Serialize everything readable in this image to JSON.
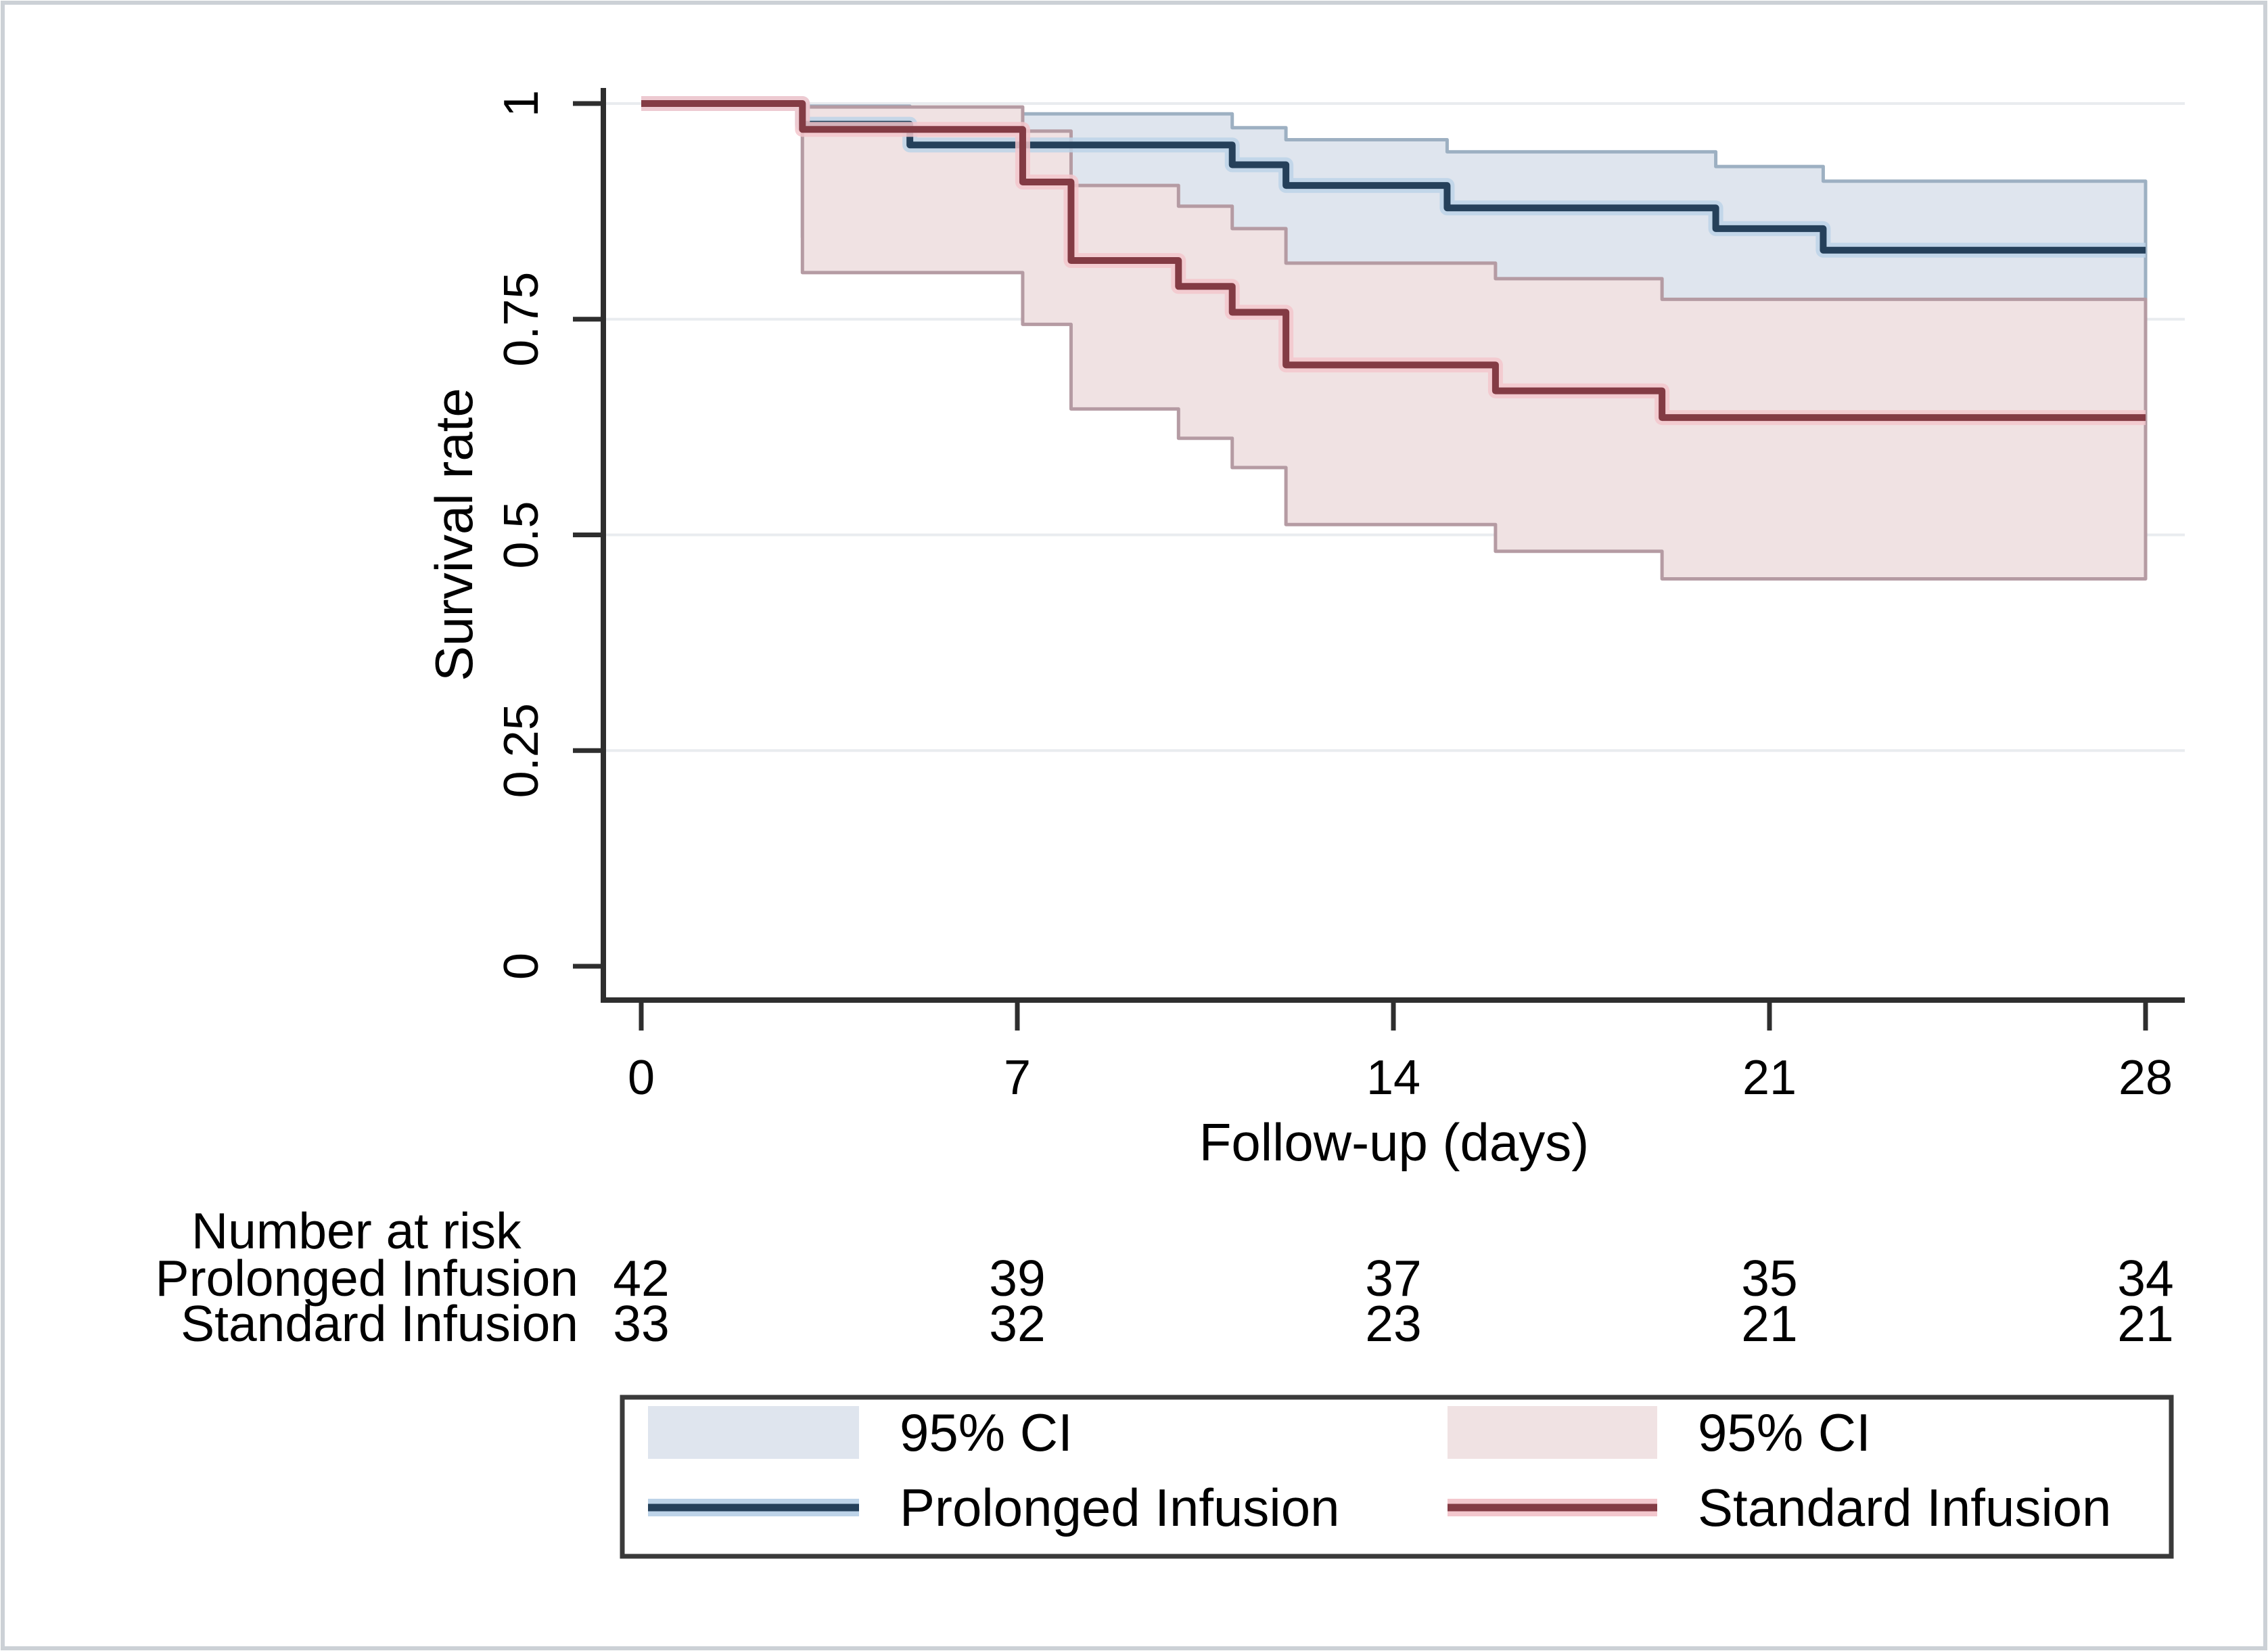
{
  "figure": {
    "kind": "kaplan-meier-survival-plot",
    "background": "#ffffff",
    "border_color": "#ccd1d6"
  },
  "chart_data": {
    "type": "line",
    "subtype": "kaplan_meier_step",
    "xlabel": "Follow-up (days)",
    "ylabel": "Survival rate",
    "xlim": [
      0,
      28
    ],
    "ylim": [
      0,
      1
    ],
    "x_ticks": [
      0,
      7,
      14,
      21,
      28
    ],
    "y_ticks": [
      {
        "value": 0,
        "label": "0"
      },
      {
        "value": 0.25,
        "label": "0.25"
      },
      {
        "value": 0.5,
        "label": "0.5"
      },
      {
        "value": 0.75,
        "label": "0.75"
      },
      {
        "value": 1,
        "label": "1"
      }
    ],
    "grid": "horizontal",
    "grid_color": "#e9ecef",
    "axis_color": "#2e2e2e",
    "legend_position": "bottom",
    "ci_label": "95% CI",
    "series": [
      {
        "name": "Prolonged Infusion",
        "line_color": "#25405a",
        "halo_color": "#bdd3e8",
        "ci_fill": "#dfe5ee",
        "ci_edge": "#9db0c2",
        "steps": [
          [
            0,
            1
          ],
          [
            3,
            0.976
          ],
          [
            5,
            0.952
          ],
          [
            11,
            0.929
          ],
          [
            12,
            0.905
          ],
          [
            15,
            0.879
          ],
          [
            20,
            0.855
          ],
          [
            22,
            0.83
          ]
        ],
        "ci_upper": [
          [
            3,
            0.997
          ],
          [
            5,
            0.988
          ],
          [
            11,
            0.972
          ],
          [
            12,
            0.958
          ],
          [
            15,
            0.944
          ],
          [
            20,
            0.927
          ],
          [
            22,
            0.91
          ]
        ],
        "ci_lower": [
          [
            3,
            0.845
          ],
          [
            5,
            0.823
          ],
          [
            11,
            0.795
          ],
          [
            12,
            0.768
          ],
          [
            15,
            0.738
          ],
          [
            20,
            0.71
          ],
          [
            22,
            0.683
          ]
        ]
      },
      {
        "name": "Standard Infusion",
        "line_color": "#833b44",
        "halo_color": "#f3c7cd",
        "ci_fill": "#f0e2e3",
        "ci_edge": "#b59ba3",
        "steps": [
          [
            0,
            1
          ],
          [
            3,
            0.97
          ],
          [
            7.1,
            0.909
          ],
          [
            8,
            0.818
          ],
          [
            10,
            0.788
          ],
          [
            11,
            0.758
          ],
          [
            12,
            0.697
          ],
          [
            15.9,
            0.667
          ],
          [
            19,
            0.636
          ]
        ],
        "ci_upper": [
          [
            3,
            0.996
          ],
          [
            7.1,
            0.968
          ],
          [
            8,
            0.905
          ],
          [
            10,
            0.881
          ],
          [
            11,
            0.855
          ],
          [
            12,
            0.815
          ],
          [
            15.9,
            0.797
          ],
          [
            19,
            0.773
          ]
        ],
        "ci_lower": [
          [
            3,
            0.804
          ],
          [
            7.1,
            0.744
          ],
          [
            8,
            0.646
          ],
          [
            10,
            0.612
          ],
          [
            11,
            0.578
          ],
          [
            12,
            0.512
          ],
          [
            15.9,
            0.481
          ],
          [
            19,
            0.449
          ]
        ]
      }
    ],
    "risk_table": {
      "title": "Number at risk",
      "times": [
        0,
        7,
        14,
        21,
        28
      ],
      "rows": [
        {
          "label": "Prolonged Infusion",
          "counts": [
            42,
            39,
            37,
            35,
            34
          ]
        },
        {
          "label": "Standard Infusion",
          "counts": [
            33,
            32,
            23,
            21,
            21
          ]
        }
      ]
    }
  }
}
